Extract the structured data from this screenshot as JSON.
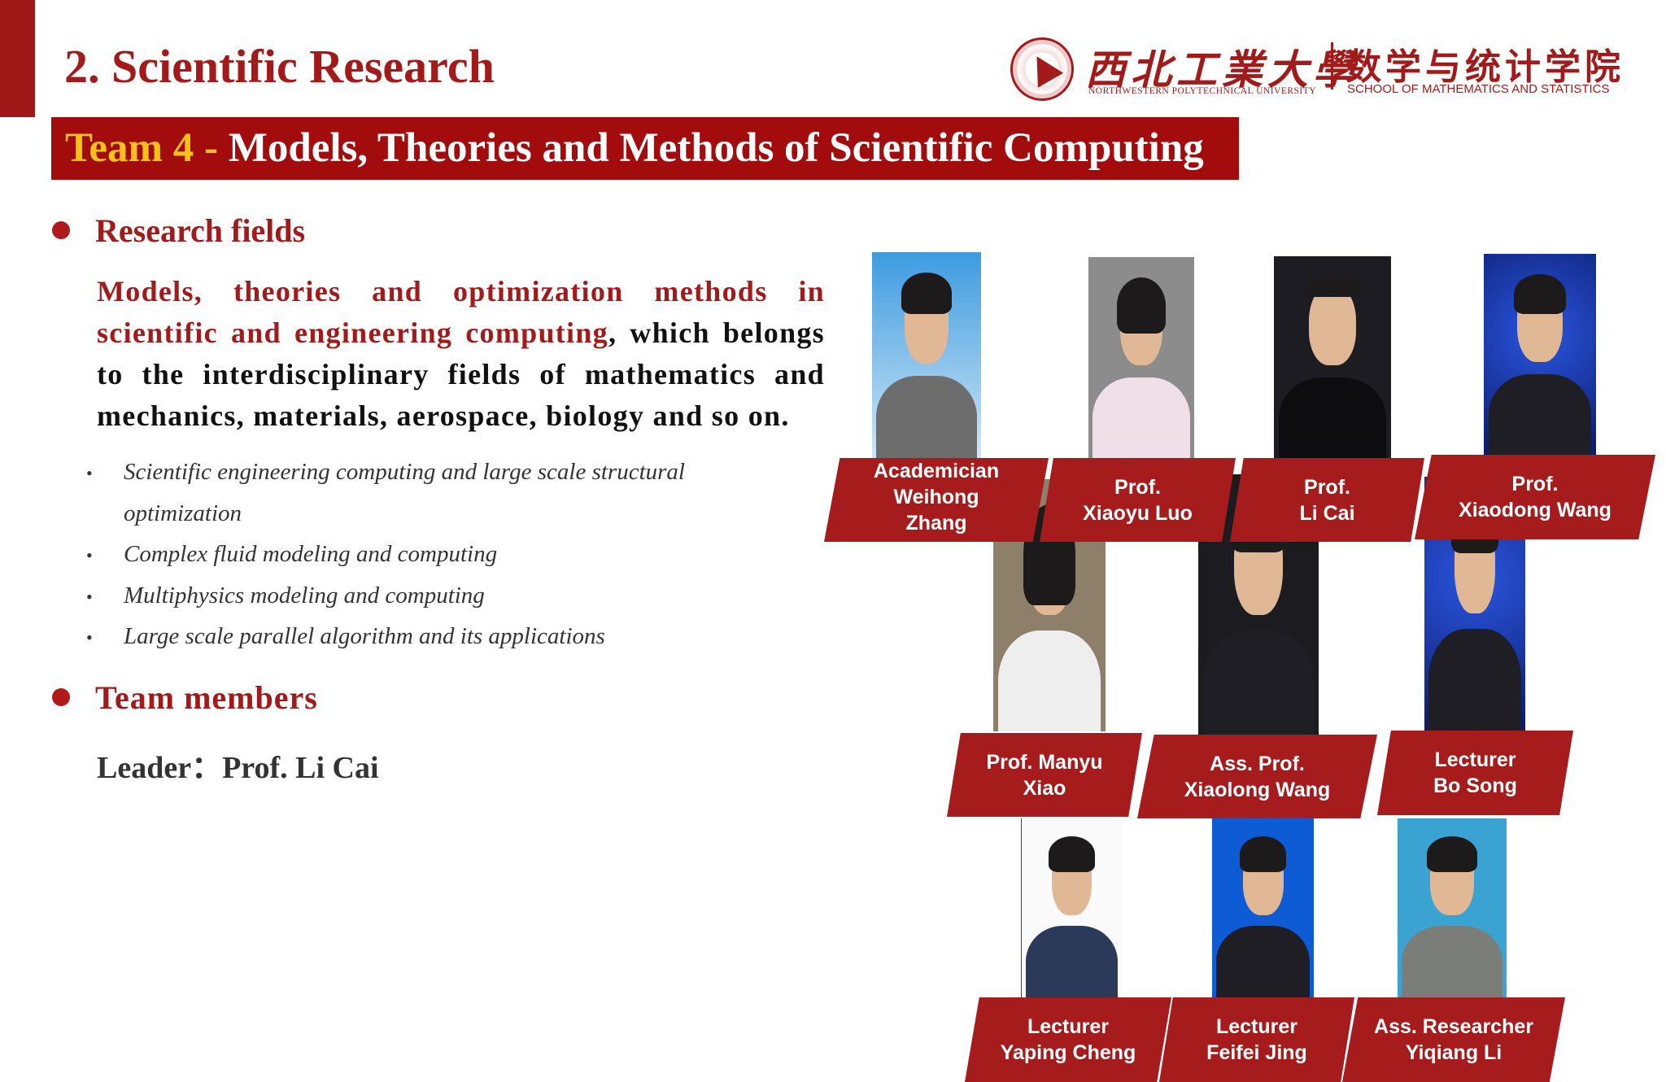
{
  "header": {
    "title": "2. Scientific Research"
  },
  "logo": {
    "university_cn": "西北工業大學",
    "university_en": "NORTHWESTERN POLYTECHNICAL UNIVERSITY",
    "school_cn": "数学与统计学院",
    "school_en": "SCHOOL OF MATHEMATICS AND STATISTICS"
  },
  "banner": {
    "team": "Team 4 - ",
    "title": "Models, Theories and Methods of Scientific Computing"
  },
  "research": {
    "heading": "Research fields",
    "highlight": "Models, theories and optimization methods in scientific and engineering computing",
    "rest": ", which belongs to the interdisciplinary fields of mathematics and mechanics, materials, aerospace, biology and so on.",
    "items": [
      "Scientific engineering computing and large scale structural",
      "optimization",
      "Complex fluid modeling and computing",
      "Multiphysics modeling and computing",
      "Large scale parallel algorithm and its applications"
    ],
    "bullet": "•"
  },
  "team": {
    "heading": "Team members",
    "leader": "Leader：Prof. Li Cai"
  },
  "members": [
    {
      "title": "Academician",
      "name": "Weihong",
      "name2": "Zhang"
    },
    {
      "title": "Prof.",
      "name": "Xiaoyu Luo"
    },
    {
      "title": "Prof.",
      "name": "Li Cai"
    },
    {
      "title": "Prof.",
      "name": "Xiaodong Wang"
    },
    {
      "title": "Prof. Manyu",
      "name": "Xiao"
    },
    {
      "title": "Ass. Prof.",
      "name": "Xiaolong Wang"
    },
    {
      "title": "Lecturer",
      "name": "Bo Song"
    },
    {
      "title": "Lecturer",
      "name": "Yaping Cheng"
    },
    {
      "title": "Lecturer",
      "name": "Feifei Jing"
    },
    {
      "title": "Ass. Researcher",
      "name": "Yiqiang Li"
    }
  ],
  "colors": {
    "accent": "#a31a1a",
    "banner": "#a30c0c",
    "highlight": "#f6c21a"
  }
}
